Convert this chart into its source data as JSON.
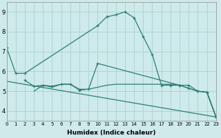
{
  "xlabel": "Humidex (Indice chaleur)",
  "bg_color": "#ceeaea",
  "grid_color": "#afd4d4",
  "line_color": "#2a7d74",
  "xlim": [
    0,
    23
  ],
  "ylim": [
    3.5,
    9.5
  ],
  "yticks": [
    4,
    5,
    6,
    7,
    8,
    9
  ],
  "xticks": [
    0,
    1,
    2,
    3,
    4,
    5,
    6,
    7,
    8,
    9,
    10,
    11,
    12,
    13,
    14,
    15,
    16,
    17,
    18,
    19,
    20,
    21,
    22,
    23
  ],
  "series": [
    {
      "x": [
        0,
        1,
        2,
        10,
        11,
        12,
        13,
        14,
        15,
        16,
        17,
        18,
        19,
        20,
        21,
        22,
        23
      ],
      "y": [
        7.2,
        5.9,
        5.9,
        8.3,
        8.75,
        8.85,
        9.0,
        8.7,
        7.75,
        6.85,
        5.3,
        5.3,
        5.3,
        5.3,
        5.0,
        4.95,
        3.7
      ],
      "marker": true
    },
    {
      "x": [
        2,
        3,
        4,
        5,
        6,
        7,
        8,
        9,
        10,
        19,
        20,
        21,
        22,
        23
      ],
      "y": [
        5.55,
        5.25,
        5.3,
        5.25,
        5.35,
        5.35,
        5.05,
        5.1,
        6.4,
        5.3,
        5.15,
        5.0,
        4.95,
        3.7
      ],
      "marker": true
    },
    {
      "x": [
        3,
        4,
        5,
        6,
        7,
        8,
        9,
        10,
        11,
        12,
        13,
        14,
        15,
        16,
        17,
        18,
        19,
        20,
        21,
        22,
        23
      ],
      "y": [
        5.0,
        5.3,
        5.2,
        5.35,
        5.35,
        5.1,
        5.1,
        5.2,
        5.3,
        5.35,
        5.35,
        5.35,
        5.35,
        5.35,
        5.35,
        5.35,
        5.3,
        5.15,
        5.0,
        4.95,
        3.7
      ],
      "marker": false
    },
    {
      "x": [
        0,
        23
      ],
      "y": [
        5.5,
        3.7
      ],
      "marker": false
    }
  ]
}
